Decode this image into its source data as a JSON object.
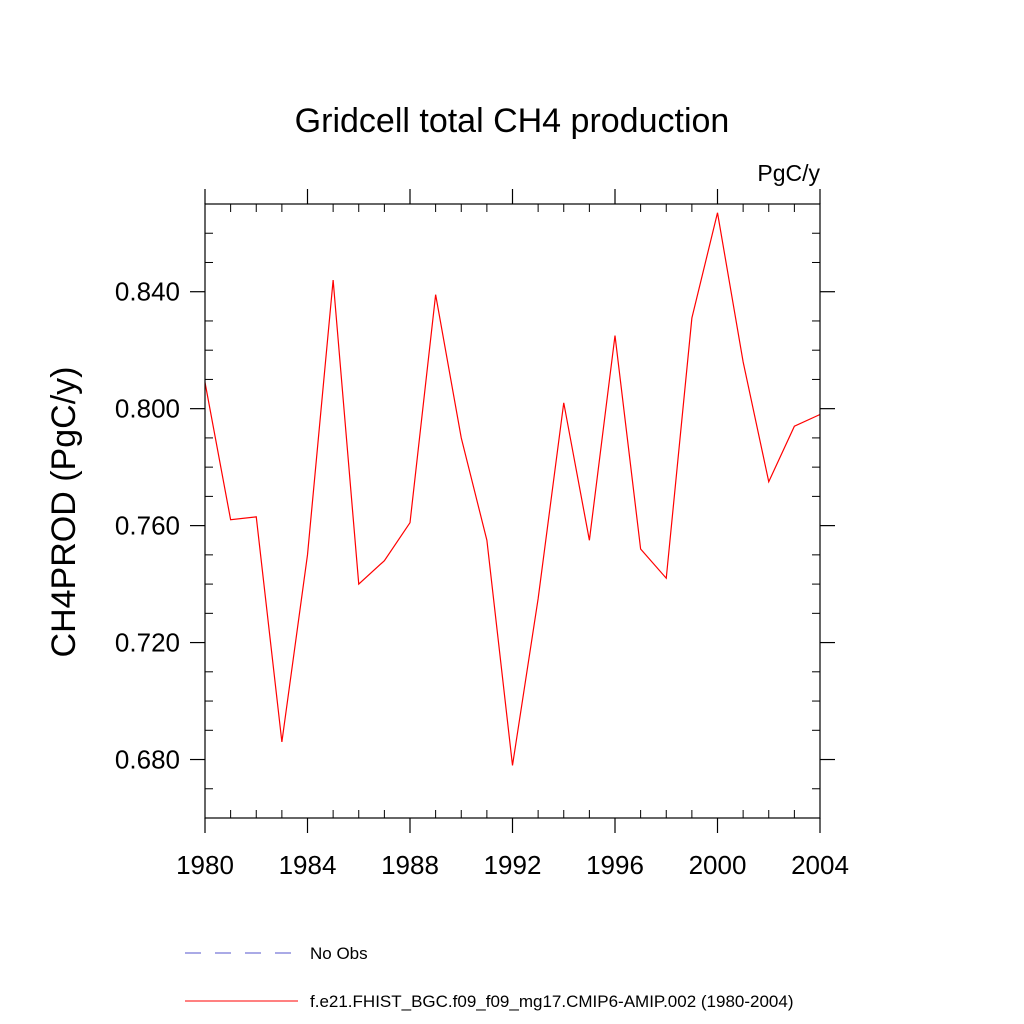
{
  "chart_data": {
    "type": "line",
    "title": "Gridcell total CH4 production",
    "units_label": "PgC/y",
    "xlabel": "",
    "ylabel": "CH4PROD  (PgC/y)",
    "xlim": [
      1980,
      2004
    ],
    "ylim": [
      0.66,
      0.87
    ],
    "x_ticks": [
      1980,
      1984,
      1988,
      1992,
      1996,
      2000,
      2004
    ],
    "x_tick_labels": [
      "1980",
      "1984",
      "1988",
      "1992",
      "1996",
      "2000",
      "2004"
    ],
    "y_ticks": [
      0.68,
      0.72,
      0.76,
      0.8,
      0.84
    ],
    "y_tick_labels": [
      "0.680",
      "0.720",
      "0.760",
      "0.800",
      "0.840"
    ],
    "grid": false,
    "series": [
      {
        "name": "f.e21.FHIST_BGC.f09_f09_mg17.CMIP6-AMIP.002 (1980-2004)",
        "color": "#ff0000",
        "style": "solid",
        "x": [
          1980,
          1981,
          1982,
          1983,
          1984,
          1985,
          1986,
          1987,
          1988,
          1989,
          1990,
          1991,
          1992,
          1993,
          1994,
          1995,
          1996,
          1997,
          1998,
          1999,
          2000,
          2001,
          2002,
          2003,
          2004
        ],
        "values": [
          0.809,
          0.762,
          0.763,
          0.686,
          0.75,
          0.844,
          0.74,
          0.748,
          0.761,
          0.839,
          0.79,
          0.755,
          0.678,
          0.735,
          0.802,
          0.755,
          0.825,
          0.752,
          0.742,
          0.831,
          0.867,
          0.816,
          0.775,
          0.794,
          0.798
        ]
      }
    ],
    "legend": [
      {
        "label": "No Obs",
        "color": "#5555cc",
        "style": "dashed"
      },
      {
        "label": "f.e21.FHIST_BGC.f09_f09_mg17.CMIP6-AMIP.002 (1980-2004)",
        "color": "#ff0000",
        "style": "solid"
      }
    ]
  }
}
